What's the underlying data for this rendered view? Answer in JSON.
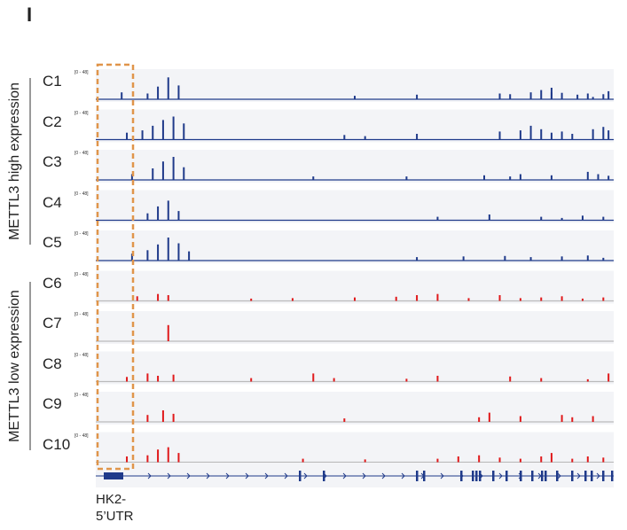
{
  "panel": {
    "letter": "I"
  },
  "range_label": "[0 - 48]",
  "groups": [
    {
      "label": "METTL3 high expression",
      "color": "#1f3a8a"
    },
    {
      "label": "METTL3 low expression",
      "color": "#e0191b"
    }
  ],
  "tracks": [
    {
      "label": "C1",
      "group": 0,
      "peaks": [
        [
          0.05,
          0.3
        ],
        [
          0.1,
          0.25
        ],
        [
          0.12,
          0.55
        ],
        [
          0.14,
          0.95
        ],
        [
          0.16,
          0.6
        ],
        [
          0.5,
          0.15
        ],
        [
          0.62,
          0.2
        ],
        [
          0.78,
          0.25
        ],
        [
          0.8,
          0.22
        ],
        [
          0.84,
          0.3
        ],
        [
          0.86,
          0.4
        ],
        [
          0.88,
          0.3
        ],
        [
          0.95,
          0.25
        ],
        [
          0.98,
          0.22
        ],
        [
          0.88,
          0.5
        ],
        [
          0.9,
          0.28
        ],
        [
          0.93,
          0.2
        ],
        [
          0.96,
          0.1
        ],
        [
          0.99,
          0.35
        ]
      ]
    },
    {
      "label": "C2",
      "group": 0,
      "peaks": [
        [
          0.06,
          0.3
        ],
        [
          0.09,
          0.4
        ],
        [
          0.11,
          0.6
        ],
        [
          0.13,
          0.85
        ],
        [
          0.15,
          1.0
        ],
        [
          0.17,
          0.7
        ],
        [
          0.48,
          0.2
        ],
        [
          0.52,
          0.15
        ],
        [
          0.62,
          0.25
        ],
        [
          0.78,
          0.35
        ],
        [
          0.82,
          0.4
        ],
        [
          0.84,
          0.6
        ],
        [
          0.86,
          0.45
        ],
        [
          0.88,
          0.3
        ],
        [
          0.9,
          0.35
        ],
        [
          0.92,
          0.25
        ],
        [
          0.96,
          0.45
        ],
        [
          0.98,
          0.55
        ],
        [
          0.99,
          0.4
        ]
      ]
    },
    {
      "label": "C3",
      "group": 0,
      "peaks": [
        [
          0.07,
          0.25
        ],
        [
          0.11,
          0.5
        ],
        [
          0.13,
          0.8
        ],
        [
          0.15,
          1.0
        ],
        [
          0.17,
          0.55
        ],
        [
          0.42,
          0.15
        ],
        [
          0.6,
          0.15
        ],
        [
          0.75,
          0.2
        ],
        [
          0.8,
          0.15
        ],
        [
          0.82,
          0.25
        ],
        [
          0.88,
          0.2
        ],
        [
          0.95,
          0.35
        ],
        [
          0.97,
          0.25
        ],
        [
          0.99,
          0.18
        ]
      ]
    },
    {
      "label": "C4",
      "group": 0,
      "peaks": [
        [
          0.1,
          0.3
        ],
        [
          0.12,
          0.6
        ],
        [
          0.14,
          0.85
        ],
        [
          0.16,
          0.4
        ],
        [
          0.66,
          0.15
        ],
        [
          0.76,
          0.25
        ],
        [
          0.86,
          0.15
        ],
        [
          0.9,
          0.1
        ],
        [
          0.94,
          0.2
        ],
        [
          0.98,
          0.15
        ]
      ]
    },
    {
      "label": "C5",
      "group": 0,
      "peaks": [
        [
          0.07,
          0.3
        ],
        [
          0.1,
          0.45
        ],
        [
          0.12,
          0.7
        ],
        [
          0.14,
          1.0
        ],
        [
          0.16,
          0.75
        ],
        [
          0.18,
          0.4
        ],
        [
          0.62,
          0.15
        ],
        [
          0.71,
          0.18
        ],
        [
          0.79,
          0.2
        ],
        [
          0.84,
          0.15
        ],
        [
          0.9,
          0.18
        ],
        [
          0.95,
          0.22
        ],
        [
          0.98,
          0.12
        ]
      ]
    },
    {
      "label": "C6",
      "group": 1,
      "peaks": [
        [
          0.08,
          0.2
        ],
        [
          0.12,
          0.3
        ],
        [
          0.14,
          0.25
        ],
        [
          0.3,
          0.1
        ],
        [
          0.38,
          0.12
        ],
        [
          0.5,
          0.15
        ],
        [
          0.58,
          0.18
        ],
        [
          0.62,
          0.25
        ],
        [
          0.66,
          0.3
        ],
        [
          0.72,
          0.12
        ],
        [
          0.78,
          0.25
        ],
        [
          0.82,
          0.12
        ],
        [
          0.86,
          0.15
        ],
        [
          0.9,
          0.2
        ],
        [
          0.94,
          0.1
        ],
        [
          0.98,
          0.15
        ]
      ]
    },
    {
      "label": "C7",
      "group": 1,
      "peaks": [
        [
          0.14,
          0.7
        ]
      ]
    },
    {
      "label": "C8",
      "group": 1,
      "peaks": [
        [
          0.06,
          0.2
        ],
        [
          0.1,
          0.35
        ],
        [
          0.12,
          0.25
        ],
        [
          0.15,
          0.3
        ],
        [
          0.3,
          0.15
        ],
        [
          0.42,
          0.35
        ],
        [
          0.46,
          0.15
        ],
        [
          0.6,
          0.12
        ],
        [
          0.66,
          0.25
        ],
        [
          0.8,
          0.22
        ],
        [
          0.86,
          0.15
        ],
        [
          0.95,
          0.1
        ],
        [
          0.99,
          0.35
        ]
      ]
    },
    {
      "label": "C9",
      "group": 1,
      "peaks": [
        [
          0.1,
          0.3
        ],
        [
          0.13,
          0.5
        ],
        [
          0.15,
          0.35
        ],
        [
          0.48,
          0.15
        ],
        [
          0.74,
          0.2
        ],
        [
          0.76,
          0.4
        ],
        [
          0.82,
          0.25
        ],
        [
          0.9,
          0.3
        ],
        [
          0.92,
          0.2
        ],
        [
          0.96,
          0.25
        ]
      ]
    },
    {
      "label": "C10",
      "group": 1,
      "peaks": [
        [
          0.06,
          0.25
        ],
        [
          0.1,
          0.3
        ],
        [
          0.12,
          0.55
        ],
        [
          0.14,
          0.65
        ],
        [
          0.16,
          0.4
        ],
        [
          0.4,
          0.15
        ],
        [
          0.52,
          0.12
        ],
        [
          0.66,
          0.15
        ],
        [
          0.7,
          0.25
        ],
        [
          0.74,
          0.3
        ],
        [
          0.78,
          0.2
        ],
        [
          0.82,
          0.15
        ],
        [
          0.86,
          0.25
        ],
        [
          0.88,
          0.4
        ],
        [
          0.92,
          0.15
        ],
        [
          0.95,
          0.25
        ],
        [
          0.98,
          0.2
        ]
      ]
    }
  ],
  "gene": {
    "label_line1": "HK2-",
    "label_line2": "5’UTR",
    "color": "#1f3a8a"
  },
  "highlight_color": "#e0954a"
}
